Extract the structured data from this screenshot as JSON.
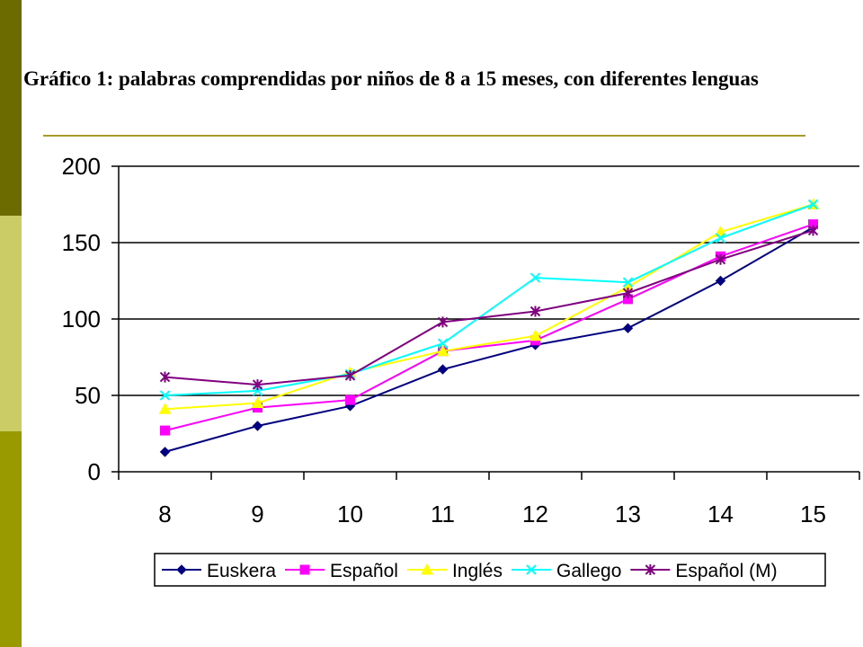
{
  "slide": {
    "title": "Gráfico 1: palabras comprendidas por niños de 8 a 15 meses, con diferentes lenguas",
    "colors": {
      "side_dark": "#6b6b00",
      "side_light": "#cccc66",
      "side_mid": "#999900",
      "rule": "#a89a2a"
    }
  },
  "chart_data": {
    "type": "line",
    "title": "",
    "xlabel": "",
    "ylabel": "",
    "categories": [
      "8",
      "9",
      "10",
      "11",
      "12",
      "13",
      "14",
      "15"
    ],
    "ylim": [
      0,
      200
    ],
    "yticks": [
      "0",
      "50",
      "100",
      "150",
      "200"
    ],
    "grid": true,
    "legend_position": "bottom",
    "series": [
      {
        "name": "Euskera",
        "color": "#000080",
        "marker": "diamond",
        "values": [
          13,
          30,
          43,
          67,
          83,
          94,
          125,
          160
        ]
      },
      {
        "name": "Español",
        "color": "#ff00ff",
        "marker": "square",
        "values": [
          27,
          42,
          47,
          79,
          86,
          113,
          141,
          162
        ]
      },
      {
        "name": "Inglés",
        "color": "#ffff00",
        "marker": "triangle",
        "values": [
          41,
          45,
          65,
          79,
          89,
          121,
          157,
          175
        ]
      },
      {
        "name": "Gallego",
        "color": "#00ffff",
        "marker": "x",
        "values": [
          50,
          53,
          64,
          84,
          127,
          124,
          153,
          175
        ]
      },
      {
        "name": "Español (M)",
        "color": "#800080",
        "marker": "star",
        "values": [
          62,
          57,
          63,
          98,
          105,
          117,
          139,
          158
        ]
      }
    ]
  }
}
